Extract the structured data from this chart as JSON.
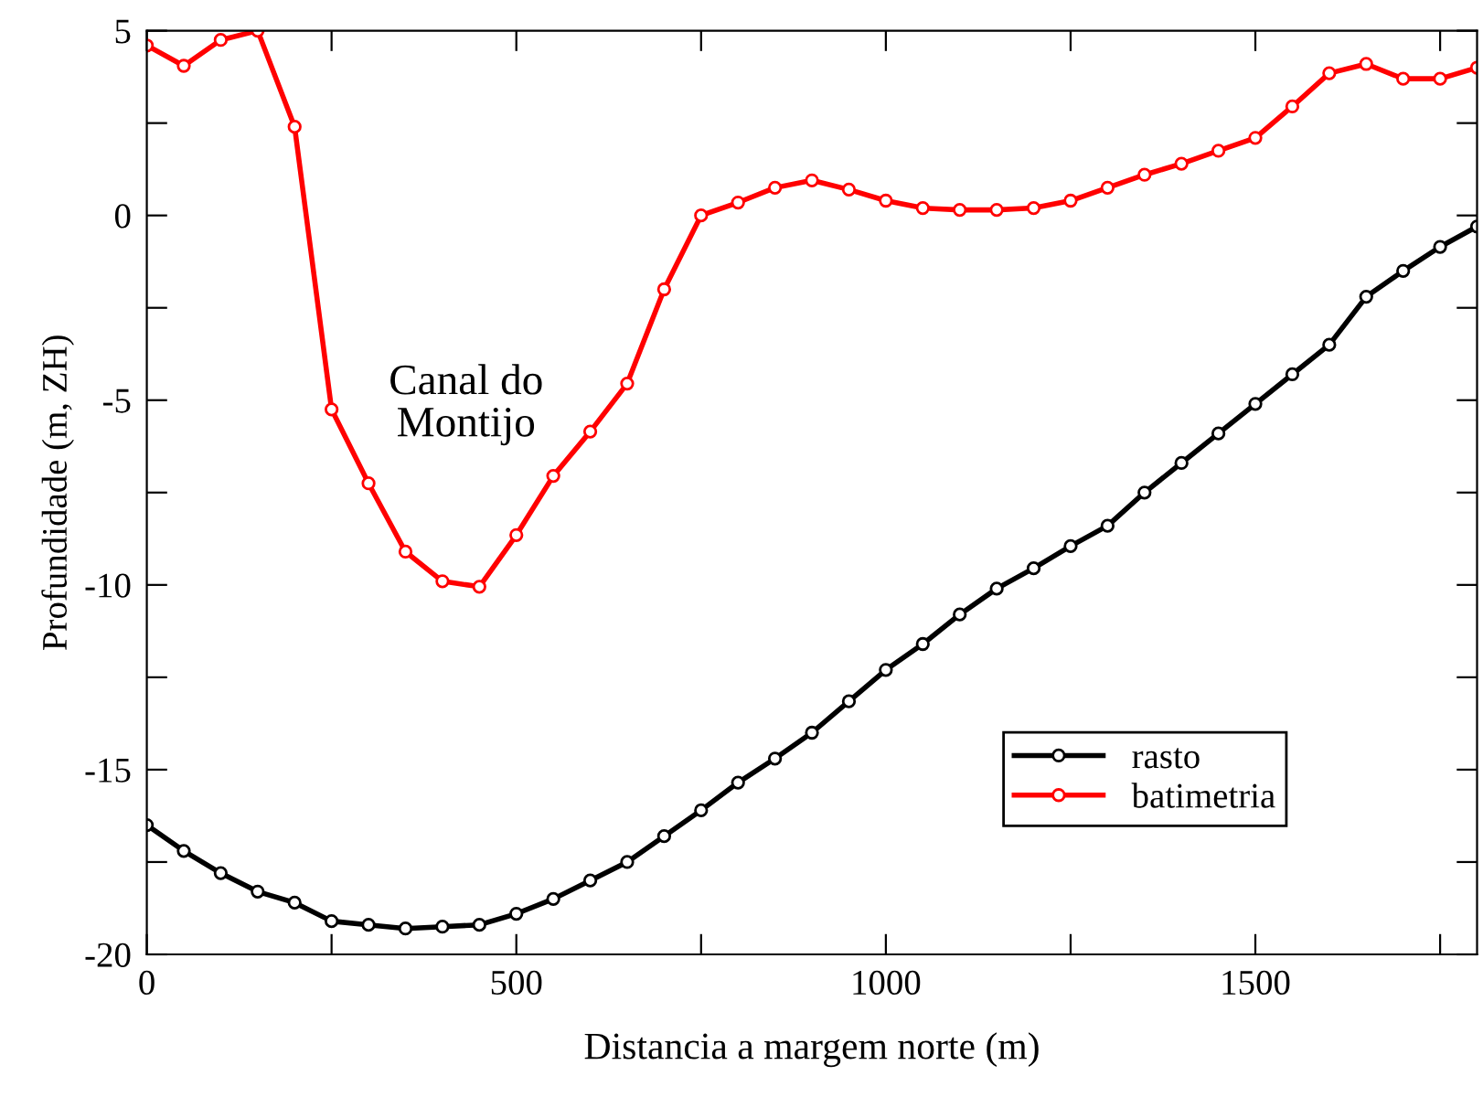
{
  "chart_data": {
    "type": "line",
    "xlabel": "Distancia a margem norte (m)",
    "ylabel": "Profundidade (m, ZH)",
    "x": [
      0,
      50,
      100,
      150,
      200,
      250,
      300,
      350,
      400,
      450,
      500,
      550,
      600,
      650,
      700,
      750,
      800,
      850,
      900,
      950,
      1000,
      1050,
      1100,
      1150,
      1200,
      1250,
      1300,
      1350,
      1400,
      1450,
      1500,
      1550,
      1600,
      1650,
      1700,
      1750,
      1800
    ],
    "series": [
      {
        "name": "rasto",
        "color": "#000000",
        "values": [
          -16.5,
          -17.2,
          -17.8,
          -18.3,
          -18.6,
          -19.1,
          -19.2,
          -19.3,
          -19.25,
          -19.2,
          -18.9,
          -18.5,
          -18.0,
          -17.5,
          -16.8,
          -16.1,
          -15.35,
          -14.7,
          -14.0,
          -13.15,
          -12.3,
          -11.6,
          -10.8,
          -10.1,
          -9.55,
          -8.95,
          -8.4,
          -7.5,
          -6.7,
          -5.9,
          -5.1,
          -4.3,
          -3.5,
          -2.2,
          -1.5,
          -0.85,
          -0.3
        ]
      },
      {
        "name": "batimetria",
        "color": "#ff0000",
        "values": [
          4.6,
          4.05,
          4.75,
          5.0,
          2.4,
          -5.25,
          -7.25,
          -9.1,
          -9.9,
          -10.05,
          -8.65,
          -7.05,
          -5.85,
          -4.55,
          -2.0,
          0.0,
          0.35,
          0.75,
          0.95,
          0.7,
          0.4,
          0.2,
          0.15,
          0.15,
          0.2,
          0.4,
          0.75,
          1.1,
          1.4,
          1.75,
          2.1,
          2.95,
          3.85,
          4.1,
          3.7,
          3.7,
          4.0
        ]
      }
    ],
    "xlim": [
      0,
      1800
    ],
    "xticks": [
      0,
      {
        "value": 250,
        "label": null
      },
      500,
      {
        "value": 750,
        "label": null
      },
      1000,
      {
        "value": 1250,
        "label": null
      },
      1500,
      {
        "value": 1750,
        "label": null
      }
    ],
    "ylim": [
      -20,
      5
    ],
    "yticks": [
      -20,
      {
        "value": -17.5,
        "label": null
      },
      -15,
      {
        "value": -12.5,
        "label": null
      },
      -10,
      {
        "value": -7.5,
        "label": null
      },
      -5,
      {
        "value": -2.5,
        "label": null
      },
      0,
      {
        "value": 2.5,
        "label": null
      },
      5
    ],
    "annotations": [
      "Canal do\nMontijo"
    ],
    "marker": "circle",
    "line_style": "solid",
    "grid": false,
    "legend": "bottom right"
  }
}
